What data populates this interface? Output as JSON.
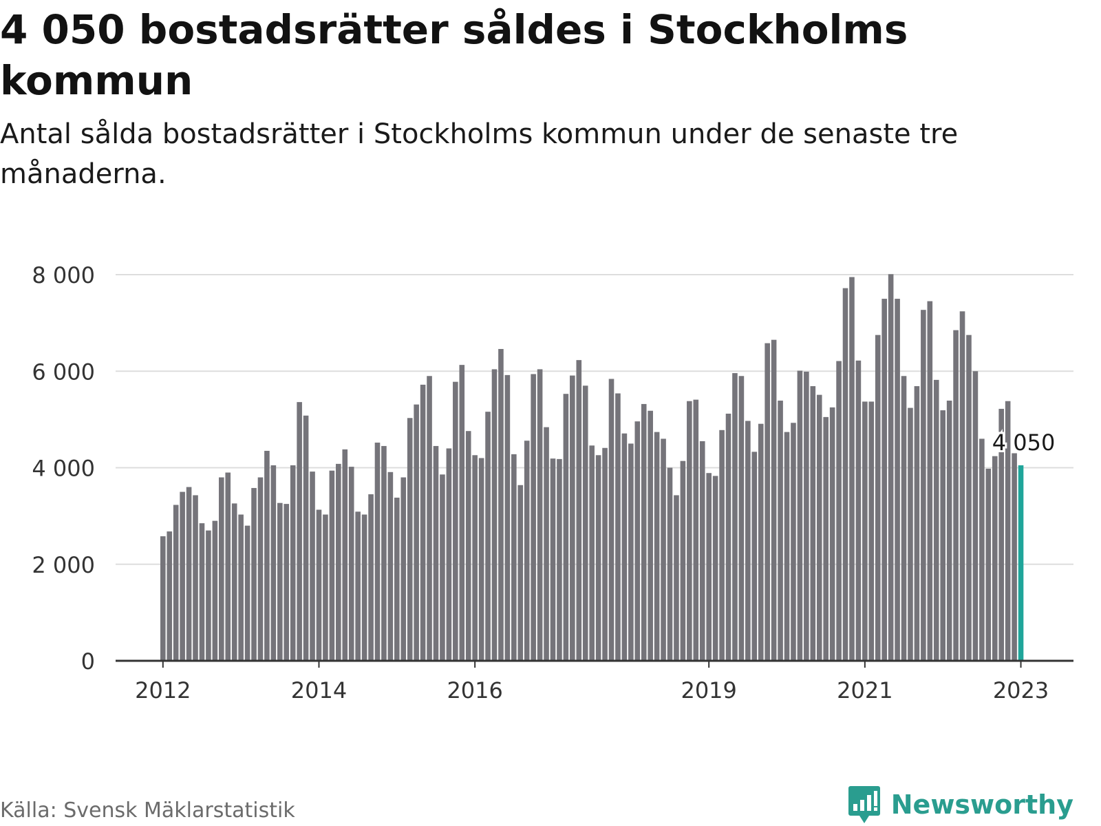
{
  "title": "4 050 bostadsrätter såldes i Stockholms kommun",
  "subtitle": "Antal sålda bostadsrätter i Stockholms kommun under de senaste tre månaderna.",
  "source": "Källa: Svensk Mäklarstatistik",
  "brand": {
    "name": "Newsworthy",
    "icon": "newsworthy-logo-icon"
  },
  "colors": {
    "bar": "#75747a",
    "highlight": "#1fa59a",
    "grid": "#dddddd",
    "axis": "#333333",
    "text": "#333333",
    "brand": "#2a9d8f"
  },
  "chart_data": {
    "type": "bar",
    "title": "4 050 bostadsrätter såldes i Stockholms kommun",
    "subtitle": "Antal sålda bostadsrätter i Stockholms kommun under de senaste tre månaderna.",
    "xlabel": "",
    "ylabel": "",
    "ylim": [
      0,
      8000
    ],
    "yticks": [
      0,
      2000,
      4000,
      6000,
      8000
    ],
    "ytick_labels": [
      "0",
      "2 000",
      "4 000",
      "6 000",
      "8 000"
    ],
    "xtick_labels": [
      "2012",
      "2014",
      "2016",
      "2019",
      "2021",
      "2023"
    ],
    "xtick_bar_index": [
      0,
      24,
      48,
      84,
      108,
      132
    ],
    "grid": true,
    "highlight_index": 132,
    "highlight_label": "4 050",
    "values": [
      2580,
      2680,
      3230,
      3500,
      3600,
      3430,
      2850,
      2700,
      2900,
      3800,
      3900,
      3260,
      3030,
      2800,
      3580,
      3800,
      4350,
      4050,
      3270,
      3250,
      4050,
      5360,
      5080,
      3920,
      3130,
      3030,
      3940,
      4080,
      4380,
      4020,
      3090,
      3030,
      3450,
      4520,
      4450,
      3910,
      3380,
      3800,
      5030,
      5310,
      5720,
      5900,
      4450,
      3860,
      4400,
      5780,
      6130,
      4760,
      4260,
      4200,
      5160,
      6040,
      6460,
      5920,
      4280,
      3640,
      4560,
      5940,
      6040,
      4840,
      4190,
      4180,
      5530,
      5910,
      6230,
      5700,
      4460,
      4260,
      4410,
      5840,
      5540,
      4710,
      4500,
      4960,
      5320,
      5180,
      4740,
      4600,
      4000,
      3430,
      4140,
      5380,
      5410,
      4550,
      3890,
      3830,
      4780,
      5120,
      5960,
      5900,
      4970,
      4330,
      4910,
      6580,
      6650,
      5390,
      4740,
      4930,
      6010,
      5990,
      5690,
      5510,
      5050,
      5250,
      6210,
      7720,
      7950,
      6220,
      5370,
      5370,
      6750,
      7500,
      8010,
      7500,
      5900,
      5240,
      5690,
      7270,
      7450,
      5820,
      5190,
      5390,
      6850,
      7240,
      6750,
      6000,
      4600,
      3980,
      4240,
      5220,
      5380,
      4300,
      4050
    ]
  }
}
